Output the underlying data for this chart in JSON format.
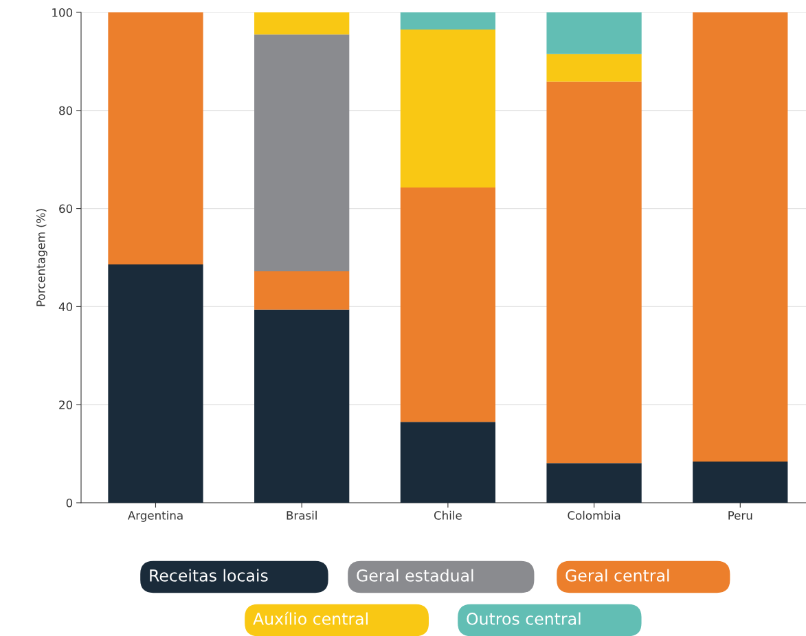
{
  "chart_data": {
    "type": "bar",
    "stacked": true,
    "ylabel": "Porcentagem (%)",
    "categories": [
      "Argentina",
      "Brasil",
      "Chile",
      "Colombia",
      "Peru"
    ],
    "series": [
      {
        "name": "Receitas locais",
        "color": "#1a2b3a",
        "values": [
          48.6,
          39.4,
          16.5,
          8.1,
          8.4
        ]
      },
      {
        "name": "Geral central",
        "color": "#ec7f2c",
        "values": [
          51.4,
          7.8,
          47.8,
          77.8,
          91.6
        ]
      },
      {
        "name": "Geral estadual",
        "color": "#8a8b8f",
        "values": [
          null,
          48.3,
          null,
          null,
          null
        ]
      },
      {
        "name": "Auxílio central",
        "color": "#f9c814",
        "values": [
          null,
          4.5,
          32.2,
          5.6,
          null
        ]
      },
      {
        "name": "Outros central",
        "color": "#62beb4",
        "values": [
          null,
          null,
          3.5,
          8.5,
          null
        ]
      }
    ],
    "ylim": [
      0,
      100
    ],
    "yticks": [
      0,
      20,
      40,
      60,
      80,
      100
    ],
    "grid": "y",
    "legend": "bottom"
  }
}
